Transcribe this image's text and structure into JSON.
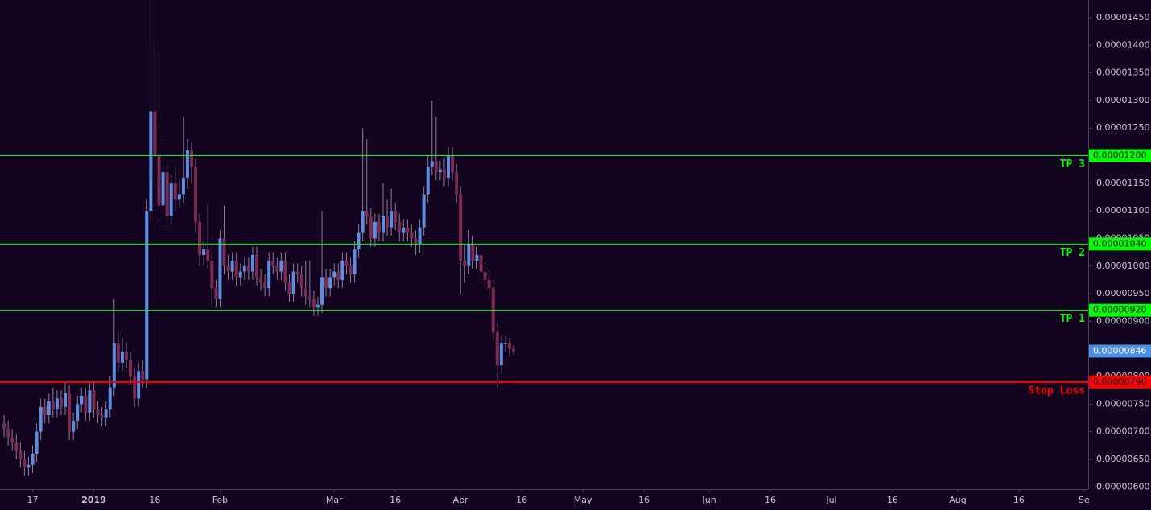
{
  "chart_data": {
    "type": "candlestick",
    "x": [
      "2018-12-10",
      "2018-12-11",
      "2018-12-12",
      "2018-12-13",
      "2018-12-14",
      "2018-12-15",
      "2018-12-16",
      "2018-12-17",
      "2018-12-18",
      "2018-12-19",
      "2018-12-20",
      "2018-12-21",
      "2018-12-22",
      "2018-12-23",
      "2018-12-24",
      "2018-12-25",
      "2018-12-26",
      "2018-12-27",
      "2018-12-28",
      "2018-12-29",
      "2018-12-30",
      "2018-12-31",
      "2019-01-01",
      "2019-01-02",
      "2019-01-03",
      "2019-01-04",
      "2019-01-05",
      "2019-01-06",
      "2019-01-07",
      "2019-01-08",
      "2019-01-09",
      "2019-01-10",
      "2019-01-11",
      "2019-01-12",
      "2019-01-13",
      "2019-01-14",
      "2019-01-15",
      "2019-01-16",
      "2019-01-17",
      "2019-01-18",
      "2019-01-19",
      "2019-01-20",
      "2019-01-21",
      "2019-01-22",
      "2019-01-23",
      "2019-01-24",
      "2019-01-25",
      "2019-01-26",
      "2019-01-27",
      "2019-01-28",
      "2019-01-29",
      "2019-01-30",
      "2019-01-31",
      "2019-02-01",
      "2019-02-02",
      "2019-02-03",
      "2019-02-04",
      "2019-02-05",
      "2019-02-06",
      "2019-02-07",
      "2019-02-08",
      "2019-02-09",
      "2019-02-10",
      "2019-02-11",
      "2019-02-12",
      "2019-02-13",
      "2019-02-14",
      "2019-02-15",
      "2019-02-16",
      "2019-02-17",
      "2019-02-18",
      "2019-02-19",
      "2019-02-20",
      "2019-02-21",
      "2019-02-22",
      "2019-02-23",
      "2019-02-24",
      "2019-02-25",
      "2019-02-26",
      "2019-02-27",
      "2019-02-28",
      "2019-03-01",
      "2019-03-02",
      "2019-03-03",
      "2019-03-04",
      "2019-03-05",
      "2019-03-06",
      "2019-03-07",
      "2019-03-08",
      "2019-03-09",
      "2019-03-10",
      "2019-03-11",
      "2019-03-12",
      "2019-03-13",
      "2019-03-14",
      "2019-03-15",
      "2019-03-16",
      "2019-03-17",
      "2019-03-18",
      "2019-03-19",
      "2019-03-20",
      "2019-03-21",
      "2019-03-22",
      "2019-03-23",
      "2019-03-24",
      "2019-03-25",
      "2019-03-26",
      "2019-03-27",
      "2019-03-28",
      "2019-03-29",
      "2019-03-30",
      "2019-03-31",
      "2019-04-01",
      "2019-04-02",
      "2019-04-03",
      "2019-04-04",
      "2019-04-05",
      "2019-04-06",
      "2019-04-07",
      "2019-04-08",
      "2019-04-09",
      "2019-04-10",
      "2019-04-11",
      "2019-04-12",
      "2019-04-13",
      "2019-04-14"
    ],
    "open": [
      7.15e-06,
      7.05e-06,
      6.9e-06,
      6.8e-06,
      6.65e-06,
      6.5e-06,
      6.35e-06,
      6.4e-06,
      6.6e-06,
      7e-06,
      7.45e-06,
      7.3e-06,
      7.55e-06,
      7.4e-06,
      7.6e-06,
      7.45e-06,
      7.7e-06,
      7e-06,
      7.2e-06,
      7.5e-06,
      7.65e-06,
      7.35e-06,
      7.75e-06,
      7.4e-06,
      7.3e-06,
      7.25e-06,
      7.4e-06,
      7.8e-06,
      8.6e-06,
      8.25e-06,
      8.45e-06,
      8.3e-06,
      8e-06,
      7.6e-06,
      8.1e-06,
      7.95e-06,
      1.1e-05,
      1.28e-05,
      1.2e-05,
      1.11e-05,
      1.17e-05,
      1.09e-05,
      1.15e-05,
      1.12e-05,
      1.13e-05,
      1.16e-05,
      1.21e-05,
      1.18e-05,
      1.08e-05,
      1.02e-05,
      1.03e-05,
      1.01e-05,
      9.6e-06,
      9.4e-06,
      1.05e-05,
      1e-05,
      9.9e-06,
      1.01e-05,
      9.8e-06,
      9.9e-06,
      1e-05,
      9.9e-06,
      1.02e-05,
      9.8e-06,
      9.7e-06,
      9.6e-06,
      1.01e-05,
      1e-05,
      9.9e-06,
      1.01e-05,
      9.7e-06,
      9.5e-06,
      9.9e-06,
      9.85e-06,
      9.6e-06,
      9.45e-06,
      9.4e-06,
      9.25e-06,
      9.3e-06,
      9.8e-06,
      9.6e-06,
      9.8e-06,
      9.9e-06,
      9.75e-06,
      1.01e-05,
      1e-05,
      9.85e-06,
      1.03e-05,
      1.06e-05,
      1.1e-05,
      1.09e-05,
      1.05e-05,
      1.08e-05,
      1.06e-05,
      1.09e-05,
      1.07e-05,
      1.1e-05,
      1.08e-05,
      1.06e-05,
      1.07e-05,
      1.06e-05,
      1.05e-05,
      1.04e-05,
      1.07e-05,
      1.13e-05,
      1.18e-05,
      1.19e-05,
      1.17e-05,
      1.175e-05,
      1.16e-05,
      1.2e-05,
      1.17e-05,
      1.13e-05,
      1.01e-05,
      1e-05,
      1.04e-05,
      1.01e-05,
      1.02e-05,
      9.9e-06,
      9.75e-06,
      9.6e-06,
      8.8e-06,
      8.2e-06,
      8.6e-06,
      8.6e-06,
      8.5e-06
    ],
    "high": [
      7.3e-06,
      7.2e-06,
      7.05e-06,
      6.95e-06,
      6.8e-06,
      6.65e-06,
      6.55e-06,
      6.75e-06,
      7.15e-06,
      7.6e-06,
      7.6e-06,
      7.7e-06,
      7.8e-06,
      7.75e-06,
      7.75e-06,
      7.9e-06,
      7.85e-06,
      7.35e-06,
      7.65e-06,
      7.8e-06,
      7.8e-06,
      7.9e-06,
      7.9e-06,
      7.55e-06,
      7.45e-06,
      7.55e-06,
      8e-06,
      9.4e-06,
      8.8e-06,
      8.7e-06,
      8.6e-06,
      8.45e-06,
      8.15e-06,
      8.25e-06,
      8.3e-06,
      1.12e-05,
      1.482e-05,
      1.4e-05,
      1.26e-05,
      1.23e-05,
      1.185e-05,
      1.165e-05,
      1.18e-05,
      1.16e-05,
      1.27e-05,
      1.23e-05,
      1.225e-05,
      1.195e-05,
      1.095e-05,
      1.045e-05,
      1.11e-05,
      1.025e-05,
      9.75e-06,
      1.065e-05,
      1.11e-05,
      1.02e-05,
      1.025e-05,
      1.025e-05,
      1.005e-05,
      1.015e-05,
      1.015e-05,
      1.035e-05,
      1.035e-05,
      9.95e-06,
      9.85e-06,
      1.025e-05,
      1.025e-05,
      1.015e-05,
      1.025e-05,
      1.025e-05,
      9.85e-06,
      1.005e-05,
      1.005e-05,
      1e-05,
      1.01e-05,
      1.01e-05,
      9.55e-06,
      9.45e-06,
      1.1e-05,
      9.95e-06,
      9.95e-06,
      1.005e-05,
      1.005e-05,
      1.025e-05,
      1.025e-05,
      1.015e-05,
      1.045e-05,
      1.075e-05,
      1.25e-05,
      1.23e-05,
      1.105e-05,
      1.095e-05,
      1.095e-05,
      1.15e-05,
      1.12e-05,
      1.14e-05,
      1.115e-05,
      1.095e-05,
      1.085e-05,
      1.085e-05,
      1.075e-05,
      1.065e-05,
      1.085e-05,
      1.145e-05,
      1.2e-05,
      1.3e-05,
      1.27e-05,
      1.19e-05,
      1.195e-05,
      1.215e-05,
      1.215e-05,
      1.185e-05,
      1.145e-05,
      1.04e-05,
      1.065e-05,
      1.055e-05,
      1.035e-05,
      1.035e-05,
      1.005e-05,
      9.9e-06,
      9.75e-06,
      8.95e-06,
      8.75e-06,
      8.75e-06,
      8.7e-06,
      8.56e-06
    ],
    "low": [
      6.9e-06,
      6.75e-06,
      6.65e-06,
      6.5e-06,
      6.35e-06,
      6.2e-06,
      6.2e-06,
      6.25e-06,
      6.45e-06,
      6.85e-06,
      7.15e-06,
      7.15e-06,
      7.25e-06,
      7.25e-06,
      7.3e-06,
      7.3e-06,
      6.85e-06,
      6.85e-06,
      7.05e-06,
      7.35e-06,
      7.2e-06,
      7.2e-06,
      7.25e-06,
      7.15e-06,
      7.1e-06,
      7.1e-06,
      7.25e-06,
      7.65e-06,
      8.1e-06,
      8.1e-06,
      8.15e-06,
      7.85e-06,
      7.45e-06,
      7.45e-06,
      7.8e-06,
      7.8e-06,
      1.08e-05,
      1.15e-05,
      1.08e-05,
      1.095e-05,
      1.07e-05,
      1.075e-05,
      1.1e-05,
      1.105e-05,
      1.115e-05,
      1.14e-05,
      1.15e-05,
      1.06e-05,
      1e-05,
      1e-05,
      9.95e-06,
      9.3e-06,
      9.25e-06,
      9.25e-06,
      9.85e-06,
      9.75e-06,
      9.75e-06,
      9.65e-06,
      9.65e-06,
      9.75e-06,
      9.75e-06,
      9.75e-06,
      9.65e-06,
      9.55e-06,
      9.45e-06,
      9.45e-06,
      9.85e-06,
      9.75e-06,
      9.75e-06,
      9.55e-06,
      9.35e-06,
      9.35e-06,
      9.7e-06,
      9.45e-06,
      9.3e-06,
      9.25e-06,
      9.1e-06,
      9.1e-06,
      9.15e-06,
      9.45e-06,
      9.45e-06,
      9.65e-06,
      9.6e-06,
      9.6e-06,
      9.85e-06,
      9.7e-06,
      9.7e-06,
      1.015e-05,
      1.045e-05,
      1.075e-05,
      1.035e-05,
      1.035e-05,
      1.045e-05,
      1.045e-05,
      1.055e-05,
      1.055e-05,
      1.065e-05,
      1.045e-05,
      1.045e-05,
      1.045e-05,
      1.035e-05,
      1.02e-05,
      1.025e-05,
      1.055e-05,
      1.115e-05,
      1.165e-05,
      1.155e-05,
      1.155e-05,
      1.145e-05,
      1.145e-05,
      1.155e-05,
      1.115e-05,
      9.5e-06,
      9.7e-06,
      9.85e-06,
      9.95e-06,
      9.95e-06,
      9.75e-06,
      9.6e-06,
      9.45e-06,
      8.65e-06,
      7.8e-06,
      8.05e-06,
      8.45e-06,
      8.35e-06,
      8.4e-06
    ],
    "close": [
      7.05e-06,
      6.9e-06,
      6.8e-06,
      6.65e-06,
      6.5e-06,
      6.35e-06,
      6.4e-06,
      6.6e-06,
      7e-06,
      7.45e-06,
      7.3e-06,
      7.55e-06,
      7.4e-06,
      7.6e-06,
      7.45e-06,
      7.7e-06,
      7e-06,
      7.2e-06,
      7.5e-06,
      7.65e-06,
      7.35e-06,
      7.75e-06,
      7.4e-06,
      7.3e-06,
      7.25e-06,
      7.4e-06,
      7.8e-06,
      8.6e-06,
      8.25e-06,
      8.45e-06,
      8.3e-06,
      8e-06,
      7.6e-06,
      8.1e-06,
      7.95e-06,
      1.1e-05,
      1.28e-05,
      1.2e-05,
      1.11e-05,
      1.17e-05,
      1.09e-05,
      1.15e-05,
      1.12e-05,
      1.13e-05,
      1.16e-05,
      1.21e-05,
      1.18e-05,
      1.08e-05,
      1.02e-05,
      1.03e-05,
      1.01e-05,
      9.6e-06,
      9.4e-06,
      1.05e-05,
      1e-05,
      9.9e-06,
      1.01e-05,
      9.8e-06,
      9.9e-06,
      1e-05,
      9.9e-06,
      1.02e-05,
      9.8e-06,
      9.7e-06,
      9.6e-06,
      1.01e-05,
      1e-05,
      9.9e-06,
      1.01e-05,
      9.7e-06,
      9.5e-06,
      9.9e-06,
      9.85e-06,
      9.6e-06,
      9.45e-06,
      9.4e-06,
      9.25e-06,
      9.3e-06,
      9.8e-06,
      9.6e-06,
      9.8e-06,
      9.9e-06,
      9.75e-06,
      1.01e-05,
      1e-05,
      9.85e-06,
      1.03e-05,
      1.06e-05,
      1.1e-05,
      1.09e-05,
      1.05e-05,
      1.08e-05,
      1.06e-05,
      1.09e-05,
      1.07e-05,
      1.1e-05,
      1.08e-05,
      1.06e-05,
      1.07e-05,
      1.06e-05,
      1.05e-05,
      1.04e-05,
      1.07e-05,
      1.13e-05,
      1.18e-05,
      1.19e-05,
      1.17e-05,
      1.175e-05,
      1.16e-05,
      1.2e-05,
      1.17e-05,
      1.13e-05,
      1.01e-05,
      1e-05,
      1.04e-05,
      1.01e-05,
      1.02e-05,
      9.9e-06,
      9.75e-06,
      9.6e-06,
      8.8e-06,
      8.2e-06,
      8.6e-06,
      8.6e-06,
      8.5e-06,
      8.46e-06
    ],
    "up_color": "#5b8ee0",
    "down_color": "#7b2c4f",
    "wick_color": "#8a7f96",
    "xlim": [
      "2018-12-09",
      "2019-09-02"
    ],
    "xticks": [
      {
        "value": "2018-12-17",
        "label": "17"
      },
      {
        "value": "2019-01-01",
        "label": "2019"
      },
      {
        "value": "2019-01-16",
        "label": "16"
      },
      {
        "value": "2019-02-01",
        "label": "Feb"
      },
      {
        "value": "2019-03-01",
        "label": "Mar"
      },
      {
        "value": "2019-03-16",
        "label": "16"
      },
      {
        "value": "2019-04-01",
        "label": "Apr"
      },
      {
        "value": "2019-04-16",
        "label": "16"
      },
      {
        "value": "2019-05-01",
        "label": "May"
      },
      {
        "value": "2019-05-16",
        "label": "16"
      },
      {
        "value": "2019-06-01",
        "label": "Jun"
      },
      {
        "value": "2019-06-16",
        "label": "16"
      },
      {
        "value": "2019-07-01",
        "label": "Jul"
      },
      {
        "value": "2019-07-16",
        "label": "16"
      },
      {
        "value": "2019-08-01",
        "label": "Aug"
      },
      {
        "value": "2019-08-16",
        "label": "16"
      },
      {
        "value": "2019-09-01",
        "label": "Se"
      }
    ],
    "ylim": [
      5.96e-06,
      1.482e-05
    ],
    "yticks": [
      {
        "value": 6e-06,
        "label": "0.00000600"
      },
      {
        "value": 6.5e-06,
        "label": "0.00000650"
      },
      {
        "value": 7e-06,
        "label": "0.00000700"
      },
      {
        "value": 7.5e-06,
        "label": "0.00000750"
      },
      {
        "value": 8e-06,
        "label": "0.00000800"
      },
      {
        "value": 8.5e-06,
        "label": "0.00000850"
      },
      {
        "value": 9e-06,
        "label": "0.00000900"
      },
      {
        "value": 9.5e-06,
        "label": "0.00000950"
      },
      {
        "value": 1e-05,
        "label": "0.00001000"
      },
      {
        "value": 1.05e-05,
        "label": "0.00001050"
      },
      {
        "value": 1.1e-05,
        "label": "0.00001100"
      },
      {
        "value": 1.15e-05,
        "label": "0.00001150"
      },
      {
        "value": 1.2e-05,
        "label": "0.00001200"
      },
      {
        "value": 1.25e-05,
        "label": "0.00001250"
      },
      {
        "value": 1.3e-05,
        "label": "0.00001300"
      },
      {
        "value": 1.35e-05,
        "label": "0.00001350"
      },
      {
        "value": 1.4e-05,
        "label": "0.00001400"
      },
      {
        "value": 1.45e-05,
        "label": "0.00001450"
      }
    ],
    "levels": [
      {
        "name": "TP 3",
        "value": 1.2e-05,
        "label": "0.00001200",
        "color": "#00ff00"
      },
      {
        "name": "TP 2",
        "value": 1.04e-05,
        "label": "0.00001040",
        "color": "#00ff00"
      },
      {
        "name": "TP 1",
        "value": 9.2e-06,
        "label": "0.00000920",
        "color": "#00ff00"
      },
      {
        "name": "Stop Loss",
        "value": 7.9e-06,
        "label": "0.00000790",
        "color": "#ff0000"
      }
    ],
    "last_price": {
      "value": 8.46e-06,
      "label": "0.00000846",
      "color": "#4a8fe6"
    }
  }
}
